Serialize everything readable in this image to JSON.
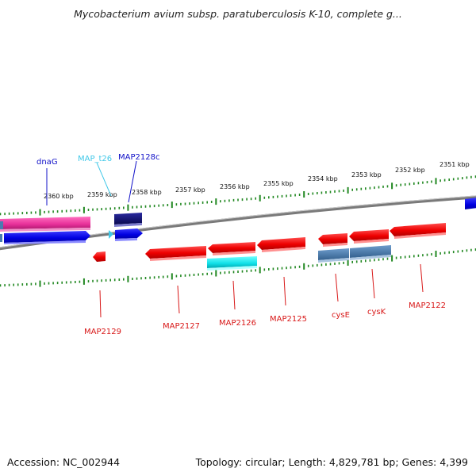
{
  "title": "Mycobacterium avium subsp. paratuberculosis K-10, complete g...",
  "footer": {
    "accession": "Accession: NC_002944",
    "topology": "Topology: circular; Length: 4,829,781 bp; Genes: 4,399"
  },
  "ruler": {
    "labels": [
      "2360 kbp",
      "2359 kbp",
      "2358 kbp",
      "2357 kbp",
      "2356 kbp",
      "2355 kbp",
      "2354 kbp",
      "2353 kbp",
      "2352 kbp",
      "2351 kbp"
    ]
  },
  "genes_top": [
    {
      "name": "dnaG",
      "color": "#1010c8"
    },
    {
      "name": "MAP_t26",
      "color": "#40c8e8"
    },
    {
      "name": "MAP2128c",
      "color": "#1010c8"
    }
  ],
  "genes_bottom": [
    {
      "name": "MAP2129",
      "color": "#d81818"
    },
    {
      "name": "MAP2127",
      "color": "#d81818"
    },
    {
      "name": "MAP2126",
      "color": "#d81818"
    },
    {
      "name": "MAP2125",
      "color": "#d81818"
    },
    {
      "name": "cysE",
      "color": "#d81818"
    },
    {
      "name": "cysK",
      "color": "#d81818"
    },
    {
      "name": "MAP2122",
      "color": "#d81818"
    }
  ],
  "colors": {
    "forward_gene": "#1010e0",
    "reverse_gene": "#ee1010",
    "rna_gene": "#20e0e8",
    "cds_pink": "#e83aa0",
    "navy_gene": "#101070",
    "steel_gene": "#4a7cb0",
    "backbone": "#777777",
    "ticks": "#228822"
  }
}
